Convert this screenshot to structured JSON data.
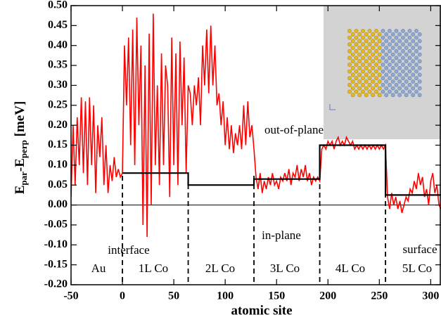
{
  "chart_data": {
    "type": "line",
    "xlabel": "atomic site",
    "ylabel": [
      "E",
      "par",
      "-E",
      "perp",
      " [meV]"
    ],
    "xlim": [
      -50,
      310
    ],
    "ylim": [
      -0.2,
      0.5
    ],
    "xticks": [
      -50,
      0,
      50,
      100,
      150,
      200,
      250,
      300
    ],
    "yticks": [
      {
        "value": -0.2,
        "label": "-0.20"
      },
      {
        "value": -0.15,
        "label": "-0.15"
      },
      {
        "value": -0.1,
        "label": "-0.10"
      },
      {
        "value": -0.05,
        "label": "-0.05"
      },
      {
        "value": 0,
        "label": "0.00"
      },
      {
        "value": 0.05,
        "label": "0.05"
      },
      {
        "value": 0.1,
        "label": "0.10"
      },
      {
        "value": 0.15,
        "label": "0.15"
      },
      {
        "value": 0.2,
        "label": "0.20"
      },
      {
        "value": 0.25,
        "label": "0.25"
      },
      {
        "value": 0.3,
        "label": "0.30"
      },
      {
        "value": 0.35,
        "label": "0.35"
      },
      {
        "value": 0.4,
        "label": "0.40"
      },
      {
        "value": 0.45,
        "label": "0.45"
      },
      {
        "value": 0.5,
        "label": "0.50"
      }
    ],
    "dividers": [
      0,
      64,
      128,
      192,
      256
    ],
    "region_labels": [
      "Au",
      "1L Co",
      "2L Co",
      "3L Co",
      "4L Co",
      "5L Co"
    ],
    "annotations": [
      "interface",
      "in-plane",
      "out-of-plane",
      "surface"
    ],
    "series": [
      {
        "color": "#ff0000",
        "x": [
          -50,
          -48,
          -46,
          -44,
          -42,
          -40,
          -38,
          -36,
          -34,
          -32,
          -30,
          -28,
          -26,
          -24,
          -22,
          -20,
          -18,
          -16,
          -14,
          -12,
          -10,
          -8,
          -6,
          -4,
          -2,
          0,
          2,
          4,
          6,
          8,
          10,
          12,
          14,
          16,
          18,
          20,
          22,
          24,
          26,
          28,
          30,
          32,
          34,
          36,
          38,
          40,
          42,
          44,
          46,
          48,
          50,
          52,
          54,
          56,
          58,
          60,
          62,
          64,
          66,
          68,
          70,
          72,
          74,
          76,
          78,
          80,
          82,
          84,
          86,
          88,
          90,
          92,
          94,
          96,
          98,
          100,
          102,
          104,
          106,
          108,
          110,
          112,
          114,
          116,
          118,
          120,
          122,
          124,
          126,
          128,
          130,
          132,
          134,
          136,
          138,
          140,
          142,
          144,
          146,
          148,
          150,
          152,
          154,
          156,
          158,
          160,
          162,
          164,
          166,
          168,
          170,
          172,
          174,
          176,
          178,
          180,
          182,
          184,
          186,
          188,
          190,
          192,
          194,
          196,
          198,
          200,
          202,
          204,
          206,
          208,
          210,
          212,
          214,
          216,
          218,
          220,
          222,
          224,
          226,
          228,
          230,
          232,
          234,
          236,
          238,
          240,
          242,
          244,
          246,
          248,
          250,
          252,
          254,
          256,
          258,
          260,
          262,
          264,
          266,
          268,
          270,
          272,
          274,
          276,
          278,
          280,
          282,
          284,
          286,
          288,
          290,
          292,
          294,
          296,
          298,
          300,
          302,
          304,
          306,
          308,
          310
        ],
        "values": [
          0.02,
          0.2,
          0.05,
          0.22,
          0.1,
          0.27,
          0.08,
          0.26,
          0.05,
          0.27,
          0.1,
          0.25,
          0.03,
          0.2,
          0.12,
          0.22,
          0.05,
          0.15,
          0.03,
          0.1,
          0.06,
          0.12,
          0.07,
          0.09,
          0.07,
          0.08,
          0.4,
          0.25,
          0.42,
          0.15,
          0.44,
          0.1,
          0.47,
          0.2,
          0.4,
          -0.05,
          0.35,
          -0.08,
          0.43,
          0,
          0.48,
          0.1,
          0.3,
          0.05,
          0.38,
          0.1,
          0.35,
          0.3,
          0.02,
          0.42,
          0.1,
          0.38,
          0.05,
          0.41,
          0.2,
          0.37,
          0.08,
          0.3,
          0.28,
          0.2,
          0.3,
          0.25,
          0.32,
          0.2,
          0.4,
          0.3,
          0.44,
          0.28,
          0.45,
          0.3,
          0.4,
          0.25,
          0.28,
          0.2,
          0.26,
          0.15,
          0.22,
          0.14,
          0.2,
          0.13,
          0.18,
          0.15,
          0.2,
          0.14,
          0.25,
          0.15,
          0.26,
          0.17,
          0.2,
          0.14,
          0.07,
          0.04,
          0.08,
          0.03,
          0.06,
          0.04,
          0.07,
          0.05,
          0.08,
          0.05,
          0.06,
          0.04,
          0.07,
          0.06,
          0.08,
          0.06,
          0.09,
          0.05,
          0.08,
          0.07,
          0.1,
          0.06,
          0.09,
          0.07,
          0.1,
          0.06,
          0.08,
          0.05,
          0.07,
          0.06,
          0.07,
          0.06,
          0.14,
          0.15,
          0.14,
          0.16,
          0.15,
          0.16,
          0.14,
          0.16,
          0.17,
          0.15,
          0.16,
          0.15,
          0.17,
          0.16,
          0.15,
          0.16,
          0.14,
          0.15,
          0.14,
          0.15,
          0.14,
          0.15,
          0.14,
          0.15,
          0.14,
          0.15,
          0.14,
          0.15,
          0.14,
          0.15,
          0.14,
          0.15,
          0.02,
          -0.01,
          0.03,
          0,
          0.02,
          -0.01,
          0.01,
          -0.02,
          0,
          0.02,
          0.01,
          0.04,
          0.03,
          0.06,
          0.04,
          0.08,
          0.05,
          0.07,
          0.02,
          0.04,
          0,
          0.06,
          0.08,
          0.03,
          0.05,
          0,
          -0.01
        ]
      },
      {
        "color": "#000000",
        "x": [
          0,
          64,
          64,
          128,
          128,
          192,
          192,
          256,
          256,
          310
        ],
        "values": [
          0.08,
          0.08,
          0.05,
          0.05,
          0.065,
          0.065,
          0.15,
          0.15,
          0.025,
          0.025
        ]
      }
    ]
  }
}
